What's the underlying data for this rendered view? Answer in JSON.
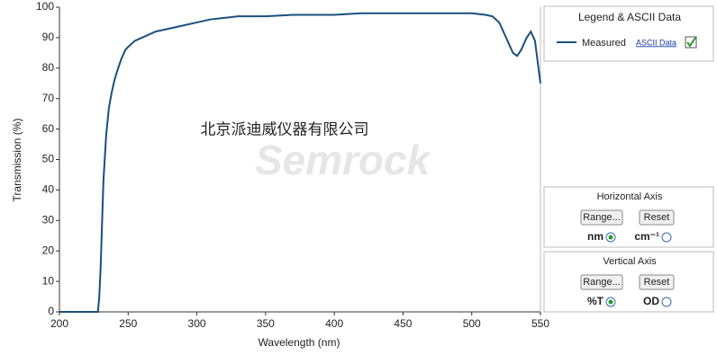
{
  "chart_data": {
    "type": "line",
    "xlabel": "Wavelength (nm)",
    "ylabel": "Transmission (%)",
    "x": [
      200,
      228,
      229,
      230,
      232,
      234,
      236,
      238,
      240,
      242,
      245,
      248,
      250,
      255,
      260,
      270,
      280,
      290,
      300,
      310,
      320,
      330,
      350,
      370,
      400,
      420,
      450,
      480,
      500,
      510,
      515,
      520,
      525,
      530,
      533,
      536,
      540,
      543,
      546,
      550
    ],
    "series": [
      {
        "name": "Measured",
        "color": "#1b4f7e",
        "values": [
          0,
          0,
          5,
          15,
          43,
          58,
          67,
          72,
          76,
          79,
          83,
          86,
          87,
          89,
          90,
          92,
          93,
          94,
          95,
          96,
          96.5,
          97,
          97,
          97.5,
          97.5,
          98,
          98,
          98,
          98,
          97.5,
          97,
          95,
          90,
          85,
          84,
          86,
          90,
          92,
          89,
          75
        ]
      }
    ],
    "xlim": [
      200,
      550
    ],
    "xticks": [
      200,
      250,
      300,
      350,
      400,
      450,
      500,
      550
    ],
    "ylim": [
      0,
      100
    ],
    "yticks": [
      0,
      10,
      20,
      30,
      40,
      50,
      60,
      70,
      80,
      90,
      100
    ],
    "grid": false
  },
  "watermark": {
    "company": "北京派迪威仪器有限公司",
    "brand": "Semrock"
  },
  "legend_panel": {
    "title": "Legend & ASCII Data",
    "link": "ASCII Data",
    "checked": true
  },
  "horizontal_axis_panel": {
    "title": "Horizontal Axis",
    "buttons": [
      "Range...",
      "Reset"
    ],
    "options": [
      {
        "label": "nm",
        "selected": true
      },
      {
        "label": "cm⁻¹",
        "selected": false
      }
    ]
  },
  "vertical_axis_panel": {
    "title": "Vertical  Axis",
    "buttons": [
      "Range...",
      "Reset"
    ],
    "options": [
      {
        "label": "%T",
        "selected": true
      },
      {
        "label": "OD",
        "selected": false
      }
    ]
  }
}
